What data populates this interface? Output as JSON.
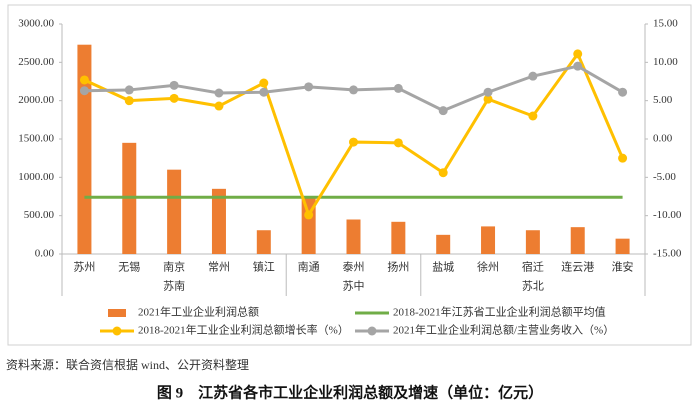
{
  "chart_data": {
    "type": "bar",
    "categories": [
      "苏州",
      "无锡",
      "南京",
      "常州",
      "镇江",
      "南通",
      "泰州",
      "扬州",
      "盐城",
      "徐州",
      "宿迁",
      "连云港",
      "淮安"
    ],
    "groups": [
      {
        "name": "苏南",
        "members": [
          "苏州",
          "无锡",
          "南京",
          "常州",
          "镇江"
        ]
      },
      {
        "name": "苏中",
        "members": [
          "南通",
          "泰州",
          "扬州"
        ]
      },
      {
        "name": "苏北",
        "members": [
          "盐城",
          "徐州",
          "宿迁",
          "连云港",
          "淮安"
        ]
      }
    ],
    "series": [
      {
        "name": "2021年工业企业利润总额",
        "type": "bar",
        "color": "#ed7d31",
        "values": [
          2730,
          1450,
          1100,
          850,
          310,
          750,
          450,
          420,
          250,
          360,
          310,
          350,
          200
        ]
      },
      {
        "name": "2018-2021年江苏省工业企业利润总额平均值",
        "type": "line",
        "color": "#70ad47",
        "markers": false,
        "values": [
          740,
          740,
          740,
          740,
          740,
          740,
          740,
          740,
          740,
          740,
          740,
          740,
          740
        ]
      },
      {
        "name": "2018-2021年工业企业利润总额增长率（%）",
        "type": "line",
        "axis": "y2",
        "color": "#ffc000",
        "markers": true,
        "values": [
          7.7,
          5.0,
          5.3,
          4.3,
          7.3,
          -9.9,
          -0.4,
          -0.5,
          -4.4,
          5.2,
          3.0,
          11.1,
          -2.5
        ]
      },
      {
        "name": "2021年工业企业利润总额/主营业务收入（%）",
        "type": "line",
        "axis": "y2",
        "color": "#a5a5a5",
        "markers": true,
        "values": [
          6.3,
          6.4,
          7.0,
          6.0,
          6.1,
          6.8,
          6.4,
          6.6,
          3.7,
          6.1,
          8.2,
          9.5,
          6.1
        ]
      }
    ],
    "ylim": [
      0,
      3000
    ],
    "yticks": [
      {
        "value": 0,
        "label": "0.00"
      },
      {
        "value": 500,
        "label": "500.00"
      },
      {
        "value": 1000,
        "label": "1000.00"
      },
      {
        "value": 1500,
        "label": "1500.00"
      },
      {
        "value": 2000,
        "label": "2000.00"
      },
      {
        "value": 2500,
        "label": "2500.00"
      },
      {
        "value": 3000,
        "label": "3000.00"
      }
    ],
    "y2lim": [
      -15,
      15
    ],
    "y2ticks": [
      {
        "value": -15,
        "label": "-15.00"
      },
      {
        "value": -10,
        "label": "-10.00"
      },
      {
        "value": -5,
        "label": "-5.00"
      },
      {
        "value": 0,
        "label": "0.00"
      },
      {
        "value": 5,
        "label": "5.00"
      },
      {
        "value": 10,
        "label": "10.00"
      },
      {
        "value": 15,
        "label": "15.00"
      }
    ],
    "source": "资料来源：联合资信根据 wind、公开资料整理",
    "caption": "图 9　江苏省各市工业企业利润总额及增速（单位：亿元）"
  }
}
